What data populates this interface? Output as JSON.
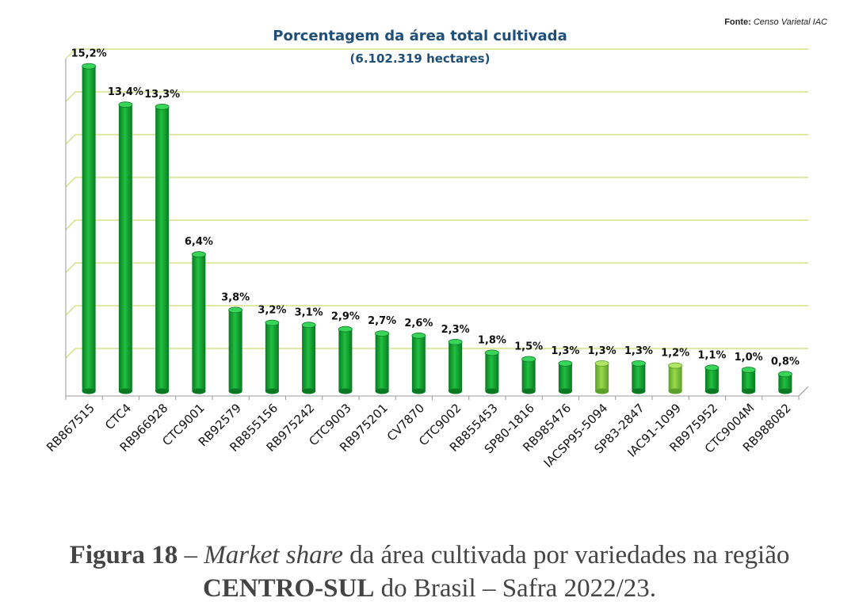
{
  "source": {
    "label": "Fonte:",
    "text": "Censo Varietal IAC"
  },
  "caption": {
    "figure": "Figura 18",
    "dash": " – ",
    "italic": "Market share",
    "rest1": " da área cultivada por variedades na região",
    "bold2": "CENTRO-SUL",
    "rest2": " do Brasil – Safra 2022/23."
  },
  "colors": {
    "main_bar": "#0f9a2e",
    "highlight_bar": "#7cc43a",
    "title": "#1f4e79",
    "grid": "#d6e08c"
  },
  "chart_data": {
    "type": "bar",
    "title": "Porcentagem da área total cultivada",
    "subtitle": "(6.102.319 hectares)",
    "categories": [
      "RB867515",
      "CTC4",
      "RB966928",
      "CTC9001",
      "RB92579",
      "RB855156",
      "RB975242",
      "CTC9003",
      "RB975201",
      "CV7870",
      "CTC9002",
      "RB855453",
      "SP80-1816",
      "RB985476",
      "IACSP95-5094",
      "SP83-2847",
      "IAC91-1099",
      "RB975952",
      "CTC9004M",
      "RB988082"
    ],
    "values": [
      15.2,
      13.4,
      13.3,
      6.4,
      3.8,
      3.2,
      3.1,
      2.9,
      2.7,
      2.6,
      2.3,
      1.8,
      1.5,
      1.3,
      1.3,
      1.3,
      1.2,
      1.1,
      1.0,
      0.8
    ],
    "labels": [
      "15,2%",
      "13,4%",
      "13,3%",
      "6,4%",
      "3,8%",
      "3,2%",
      "3,1%",
      "2,9%",
      "2,7%",
      "2,6%",
      "2,3%",
      "1,8%",
      "1,5%",
      "1,3%",
      "1,3%",
      "1,3%",
      "1,2%",
      "1,1%",
      "1,0%",
      "0,8%"
    ],
    "highlight": [
      false,
      false,
      false,
      false,
      false,
      false,
      false,
      false,
      false,
      false,
      false,
      false,
      false,
      false,
      true,
      false,
      true,
      false,
      false,
      false
    ],
    "ylim": [
      0,
      16
    ],
    "grid": true
  }
}
